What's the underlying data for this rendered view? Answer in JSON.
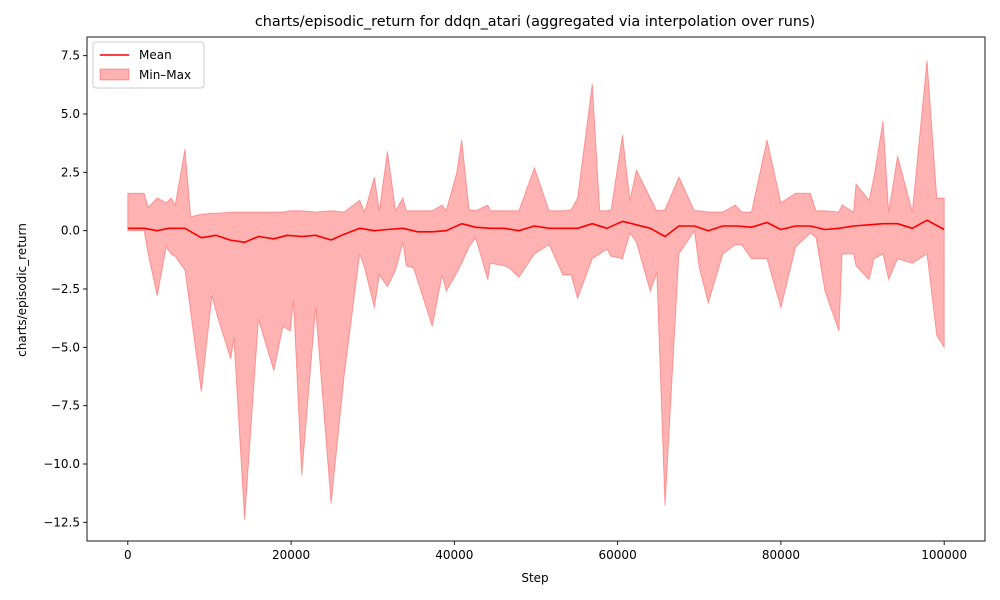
{
  "chart_data": {
    "type": "area",
    "title": "charts/episodic_return for ddqn_atari (aggregated via interpolation over runs)",
    "xlabel": "Step",
    "ylabel": "charts/episodic_return",
    "xlim": [
      -5000,
      105000
    ],
    "ylim": [
      -13.3,
      8.3
    ],
    "x_ticks": [
      0,
      20000,
      40000,
      60000,
      80000,
      100000
    ],
    "x_tick_labels": [
      "0",
      "20000",
      "40000",
      "60000",
      "80000",
      "100000"
    ],
    "y_ticks": [
      7.5,
      5.0,
      2.5,
      0.0,
      -2.5,
      -5.0,
      -7.5,
      -10.0,
      -12.5
    ],
    "y_tick_labels": [
      "7.5",
      "5.0",
      "2.5",
      "0.0",
      "−2.5",
      "−5.0",
      "−7.5",
      "−10.0",
      "−12.5"
    ],
    "grid": false,
    "legend": {
      "placement": "top-left",
      "entries": [
        "Mean",
        "Min–Max"
      ]
    },
    "colors": {
      "mean": "#ff0000",
      "band_fill": "#ff0000",
      "band_alpha": 0.3
    },
    "series": [
      {
        "name": "Mean",
        "x": [
          0,
          2000,
          3600,
          5000,
          7000,
          9000,
          10800,
          12500,
          14300,
          16000,
          17900,
          19500,
          21300,
          23000,
          24900,
          26500,
          28400,
          30200,
          31800,
          33700,
          35500,
          37300,
          39000,
          40900,
          42600,
          44400,
          46100,
          47900,
          49800,
          51600,
          53300,
          55100,
          56900,
          58700,
          60600,
          62300,
          64000,
          65800,
          67500,
          69400,
          71100,
          72900,
          74700,
          76400,
          78300,
          80000,
          81800,
          83600,
          85400,
          87100,
          88900,
          90800,
          92500,
          94300,
          96100,
          97900,
          100000
        ],
        "values": [
          0.1,
          0.1,
          0.0,
          0.1,
          0.1,
          -0.3,
          -0.2,
          -0.4,
          -0.5,
          -0.25,
          -0.35,
          -0.2,
          -0.25,
          -0.2,
          -0.4,
          -0.15,
          0.1,
          0.0,
          0.05,
          0.1,
          -0.05,
          -0.05,
          0.0,
          0.3,
          0.15,
          0.1,
          0.1,
          0.0,
          0.2,
          0.1,
          0.1,
          0.1,
          0.3,
          0.1,
          0.4,
          0.25,
          0.1,
          -0.25,
          0.2,
          0.2,
          0.0,
          0.2,
          0.2,
          0.15,
          0.35,
          0.05,
          0.2,
          0.2,
          0.05,
          0.1,
          0.2,
          0.25,
          0.3,
          0.3,
          0.1,
          0.45,
          0.05
        ]
      },
      {
        "name": "Min–Max",
        "x": [
          0,
          2000,
          2500,
          3600,
          4700,
          5300,
          5800,
          7000,
          7700,
          9000,
          10300,
          11000,
          12600,
          13000,
          14300,
          16000,
          17900,
          19000,
          19900,
          20300,
          21300,
          23000,
          24900,
          26500,
          28400,
          29000,
          30200,
          30800,
          31800,
          32800,
          33700,
          34100,
          35000,
          37300,
          38500,
          39000,
          40300,
          40900,
          41800,
          42600,
          44100,
          44400,
          46100,
          46700,
          47900,
          49800,
          51600,
          53300,
          54300,
          55100,
          56900,
          57800,
          58700,
          59200,
          60600,
          61500,
          62300,
          64000,
          64800,
          65800,
          67500,
          69400,
          70000,
          71100,
          72900,
          74400,
          75200,
          76400,
          78300,
          80000,
          81800,
          83600,
          84300,
          85400,
          87100,
          87500,
          88900,
          89200,
          90800,
          91400,
          92500,
          93200,
          94300,
          96100,
          97900,
          99100,
          100000
        ],
        "upper": [
          1.6,
          1.6,
          1.0,
          1.4,
          1.2,
          1.4,
          1.1,
          3.5,
          0.6,
          0.7,
          0.75,
          0.75,
          0.8,
          0.8,
          0.8,
          0.8,
          0.8,
          0.8,
          0.85,
          0.85,
          0.85,
          0.8,
          0.85,
          0.8,
          1.3,
          0.8,
          2.3,
          0.85,
          3.4,
          0.85,
          1.4,
          0.85,
          0.85,
          0.85,
          1.1,
          0.85,
          2.5,
          3.9,
          0.9,
          0.85,
          1.1,
          0.85,
          0.85,
          0.85,
          0.85,
          2.7,
          0.85,
          0.85,
          0.9,
          1.4,
          6.3,
          0.85,
          0.85,
          0.9,
          4.1,
          1.3,
          2.6,
          1.4,
          0.85,
          0.9,
          2.3,
          0.85,
          0.85,
          0.8,
          0.8,
          1.1,
          0.8,
          0.8,
          3.9,
          1.2,
          1.6,
          1.6,
          0.85,
          0.85,
          0.8,
          1.1,
          0.8,
          2.0,
          1.3,
          2.3,
          4.7,
          0.8,
          3.2,
          0.8,
          7.3,
          1.4,
          1.4
        ],
        "lower": [
          0.0,
          0.0,
          -1.0,
          -2.8,
          -0.7,
          -1.0,
          -1.1,
          -1.7,
          -3.5,
          -6.9,
          -2.8,
          -3.7,
          -5.5,
          -4.6,
          -12.4,
          -3.8,
          -6.0,
          -4.1,
          -4.3,
          -3.0,
          -10.5,
          -3.3,
          -11.7,
          -6.2,
          -1.0,
          -1.6,
          -3.3,
          -1.9,
          -2.4,
          -1.7,
          -0.5,
          -1.5,
          -1.6,
          -4.1,
          -1.9,
          -2.6,
          -1.8,
          -1.4,
          -0.7,
          -0.3,
          -2.1,
          -1.4,
          -1.5,
          -1.6,
          -2.0,
          -1.0,
          -0.6,
          -1.9,
          -1.9,
          -2.9,
          -1.2,
          -1.0,
          -0.8,
          -1.1,
          -1.2,
          -0.1,
          -0.5,
          -2.6,
          -1.8,
          -11.8,
          -1.0,
          0.0,
          -1.6,
          -3.1,
          -1.0,
          -0.6,
          -0.6,
          -1.2,
          -1.2,
          -3.3,
          -0.7,
          -0.1,
          -0.3,
          -2.6,
          -4.3,
          -1.0,
          -1.0,
          -1.5,
          -2.1,
          -1.2,
          -1.0,
          -2.1,
          -1.2,
          -1.4,
          -1.0,
          -4.5,
          -5.0
        ]
      }
    ]
  }
}
